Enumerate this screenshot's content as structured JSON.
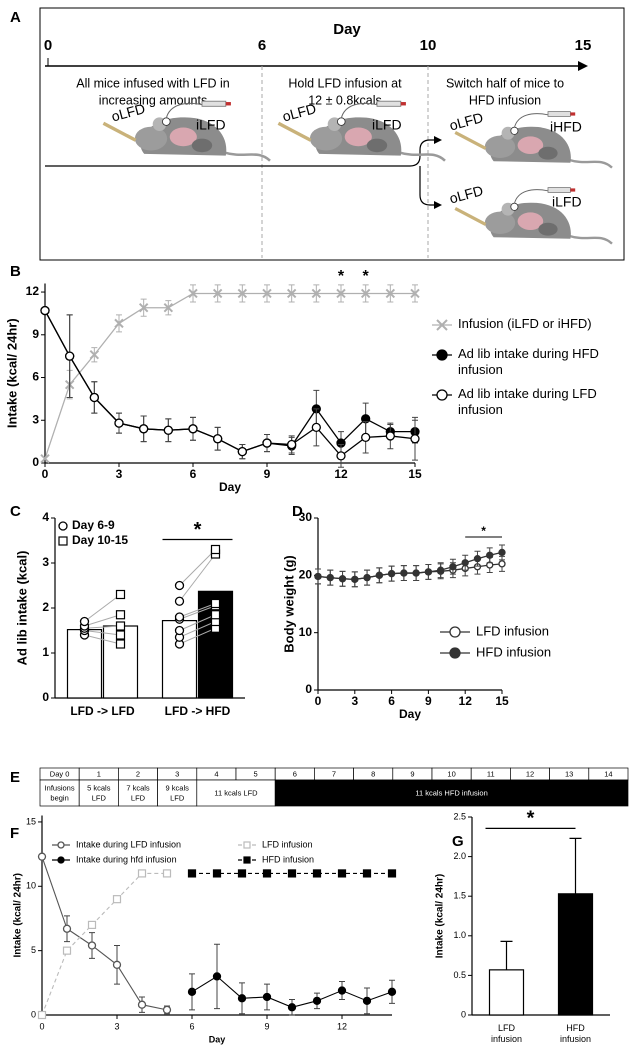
{
  "panel_labels": [
    "A",
    "B",
    "C",
    "D",
    "E",
    "F",
    "G"
  ],
  "diagram": {
    "axis_title": "Day",
    "ticks": [
      "0",
      "6",
      "10",
      "15"
    ],
    "phases": [
      [
        "All mice infused with LFD in",
        "increasing amounts"
      ],
      [
        "Hold LFD infusion at",
        "12 ± 0.8kcals"
      ],
      [
        "Switch half of mice to",
        "HFD infusion"
      ]
    ],
    "mice": [
      {
        "oral": "oLFD",
        "iv": "iLFD"
      },
      {
        "oral": "oLFD",
        "iv": "iLFD"
      },
      {
        "oral": "oLFD",
        "iv": "iHFD"
      },
      {
        "oral": "oLFD",
        "iv": "iLFD"
      }
    ]
  },
  "timeline": {
    "days": [
      "Day 0",
      "1",
      "2",
      "3",
      "4",
      "5",
      "6",
      "7",
      "8",
      "9",
      "10",
      "11",
      "12",
      "13",
      "14"
    ],
    "treatments": [
      {
        "text": "Infusions begin",
        "days": [
          0,
          0
        ],
        "color": "#ffffff"
      },
      {
        "text": "5 kcals LFD",
        "days": [
          1,
          1
        ],
        "color": "#ffffff"
      },
      {
        "text": "7 kcals LFD",
        "days": [
          2,
          2
        ],
        "color": "#ffffff"
      },
      {
        "text": "9 kcals LFD",
        "days": [
          3,
          3
        ],
        "color": "#ffffff"
      },
      {
        "text": "11 kcals LFD",
        "days": [
          4,
          5
        ],
        "color": "#ffffff"
      },
      {
        "text": "11 kcals HFD infusion",
        "days": [
          6,
          14
        ],
        "color": "#000000"
      }
    ]
  },
  "chart_data": [
    {
      "type": "line",
      "xlabel": "Day",
      "ylabel": "Intake (kcal/ 24hr)",
      "legend": "right",
      "x": [
        0,
        1,
        2,
        3,
        4,
        5,
        6,
        7,
        8,
        9,
        10,
        11,
        12,
        13,
        14,
        15
      ],
      "xlim": [
        0,
        15
      ],
      "xticks": [
        0,
        3,
        6,
        9,
        12,
        15
      ],
      "ylim": [
        0,
        12.6
      ],
      "yticks": [
        0,
        3,
        6,
        9,
        12
      ],
      "series": [
        {
          "name": "Infusion (iLFD or iHFD)",
          "color": "#b0b0b0",
          "marker": "x",
          "values": [
            0.3,
            5.5,
            7.6,
            9.8,
            10.9,
            10.9,
            11.9,
            11.9,
            11.9,
            11.9,
            11.9,
            11.9,
            11.9,
            11.9,
            11.9,
            11.9
          ],
          "errors": [
            0,
            1.0,
            0.5,
            0.6,
            0.6,
            0.5,
            0.6,
            0.6,
            0.6,
            0.6,
            0.6,
            0.6,
            0.6,
            0.6,
            0.6,
            0.6
          ]
        },
        {
          "name": "Ad lib intake during HFD infusion",
          "color": "#000000",
          "marker": "circle-filled",
          "values": [
            10.7,
            7.5,
            4.6,
            2.8,
            2.4,
            2.3,
            2.4,
            1.7,
            0.8,
            1.4,
            1.2,
            3.8,
            1.4,
            3.1,
            2.2,
            2.2
          ],
          "errors": [
            0,
            2.9,
            1.1,
            0.7,
            0.9,
            0.8,
            0.8,
            0.8,
            0.5,
            0.6,
            0.6,
            1.3,
            0.8,
            1.1,
            0.5,
            0.8
          ]
        },
        {
          "name": "Ad lib intake during LFD infusion",
          "color": "#000000",
          "marker": "circle-open",
          "values": [
            10.7,
            7.5,
            4.6,
            2.8,
            2.4,
            2.3,
            2.4,
            1.7,
            0.8,
            1.4,
            1.3,
            2.5,
            0.5,
            1.8,
            1.9,
            1.7
          ],
          "errors": [
            0,
            2.9,
            1.1,
            0.7,
            0.9,
            0.8,
            0.8,
            0.8,
            0.5,
            0.6,
            0.6,
            1.3,
            0.8,
            1.1,
            0.9,
            1.5
          ]
        }
      ],
      "annotations": [
        {
          "text": "*",
          "x": 12
        },
        {
          "text": "*",
          "x": 13
        }
      ]
    },
    {
      "type": "bar",
      "ylabel": "Ad lib intake (kcal)",
      "legend": "upper left",
      "categories": [
        "LFD -> LFD",
        "LFD -> HFD"
      ],
      "ylim": [
        0,
        4
      ],
      "yticks": [
        0,
        1,
        2,
        3,
        4
      ],
      "series": [
        {
          "name": "Day 6-9",
          "marker": "circle-open",
          "colors": [
            "#ffffff",
            "#ffffff"
          ],
          "values": [
            1.52,
            1.72
          ],
          "points": [
            [
              1.4,
              1.5,
              1.55,
              1.6,
              1.7
            ],
            [
              1.2,
              1.35,
              1.5,
              1.75,
              1.8,
              2.15,
              2.5
            ]
          ]
        },
        {
          "name": "Day 10-15",
          "marker": "square-open",
          "colors": [
            "#ffffff",
            "#000000"
          ],
          "values": [
            1.6,
            2.37
          ],
          "points": [
            [
              1.2,
              1.4,
              1.6,
              1.85,
              2.3
            ],
            [
              1.55,
              1.7,
              1.85,
              2.05,
              2.1,
              3.2,
              3.3
            ]
          ]
        }
      ],
      "annotations": [
        {
          "text": "*",
          "category": 1
        }
      ]
    },
    {
      "type": "line",
      "xlabel": "Day",
      "ylabel": "Body weight (g)",
      "legend": "lower right",
      "x": [
        0,
        1,
        2,
        3,
        4,
        5,
        6,
        7,
        8,
        9,
        10,
        11,
        12,
        13,
        14,
        15
      ],
      "xlim": [
        0,
        15
      ],
      "xticks": [
        0,
        3,
        6,
        9,
        12,
        15
      ],
      "ylim": [
        0,
        30
      ],
      "yticks": [
        0,
        10,
        20,
        30
      ],
      "series": [
        {
          "name": "LFD infusion",
          "color": "#333333",
          "marker": "circle-open",
          "values": [
            19.8,
            19.6,
            19.4,
            19.3,
            19.6,
            20.0,
            20.3,
            20.4,
            20.4,
            20.6,
            20.7,
            20.9,
            21.2,
            21.5,
            21.8,
            22.0
          ],
          "errors": [
            1.3,
            1.3,
            1.3,
            1.3,
            1.3,
            1.3,
            1.3,
            1.3,
            1.3,
            1.3,
            1.3,
            1.3,
            1.3,
            1.3,
            1.3,
            1.3
          ]
        },
        {
          "name": "HFD infusion",
          "color": "#333333",
          "marker": "circle-filled",
          "values": [
            19.8,
            19.6,
            19.4,
            19.3,
            19.6,
            20.0,
            20.3,
            20.4,
            20.4,
            20.6,
            20.9,
            21.5,
            22.2,
            22.9,
            23.5,
            24.0
          ],
          "errors": [
            1.3,
            1.3,
            1.3,
            1.3,
            1.3,
            1.3,
            1.3,
            1.3,
            1.3,
            1.3,
            1.3,
            1.3,
            1.3,
            1.3,
            1.3,
            1.3
          ]
        }
      ],
      "annotations": [
        {
          "text": "*",
          "x": [
            12,
            15
          ]
        }
      ]
    },
    {
      "type": "line",
      "xlabel": "Day",
      "ylabel": "Intake (kcal/ 24hr)",
      "legend": "top",
      "x": [
        0,
        1,
        2,
        3,
        4,
        5,
        6,
        7,
        8,
        9,
        10,
        11,
        12,
        13,
        14
      ],
      "xlim": [
        0,
        14
      ],
      "xticks": [
        0,
        3,
        6,
        9,
        12
      ],
      "ylim": [
        0,
        15.5
      ],
      "yticks": [
        0,
        5,
        10,
        15
      ],
      "series": [
        {
          "name": "Intake during LFD infusion",
          "color": "#555555",
          "marker": "circle-open",
          "values": [
            12.3,
            6.7,
            5.4,
            3.9,
            0.8,
            0.4,
            null,
            null,
            null,
            null,
            null,
            null,
            null,
            null,
            null
          ],
          "errors": [
            0,
            1.0,
            1.0,
            1.5,
            0.6,
            0.3,
            null,
            null,
            null,
            null,
            null,
            null,
            null,
            null,
            null
          ]
        },
        {
          "name": "Intake during hfd infusion",
          "color": "#000000",
          "marker": "circle-filled",
          "values": [
            null,
            null,
            null,
            null,
            null,
            null,
            1.8,
            3.0,
            1.3,
            1.4,
            0.6,
            1.1,
            1.9,
            1.1,
            1.8
          ],
          "errors": [
            null,
            null,
            null,
            null,
            null,
            null,
            1.4,
            2.5,
            1.2,
            1.0,
            0.6,
            0.6,
            0.7,
            1.0,
            0.9
          ]
        },
        {
          "name": "LFD infusion",
          "color": "#bbbbbb",
          "marker": "square-open",
          "line_style": "dashed",
          "values": [
            0,
            5,
            7,
            9,
            11,
            11,
            null,
            null,
            null,
            null,
            null,
            null,
            null,
            null,
            null
          ]
        },
        {
          "name": "HFD infusion",
          "color": "#000000",
          "marker": "square-filled",
          "line_style": "dashed",
          "values": [
            null,
            null,
            null,
            null,
            null,
            null,
            11,
            11,
            11,
            11,
            11,
            11,
            11,
            11,
            11
          ]
        }
      ]
    },
    {
      "type": "bar",
      "ylabel": "Intake (kcal/ 24hr)",
      "categories": [
        "LFD infusion",
        "HFD infusion"
      ],
      "values": [
        0.57,
        1.53
      ],
      "errors": [
        0.36,
        0.7
      ],
      "colors": [
        "#ffffff",
        "#000000"
      ],
      "ylim": [
        0,
        2.5
      ],
      "yticks": [
        0,
        0.5,
        {
          "value": 1,
          "label": "1.0"
        },
        1.5,
        {
          "value": 2,
          "label": "2.0"
        },
        2.5
      ],
      "annotations": [
        {
          "text": "*",
          "categories": [
            0,
            1
          ]
        }
      ]
    }
  ]
}
